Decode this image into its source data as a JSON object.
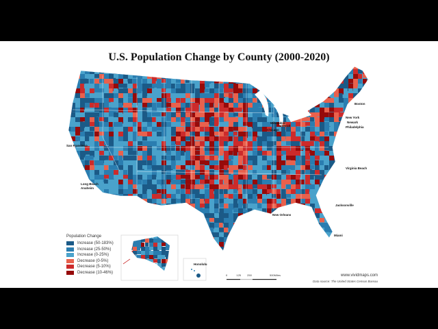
{
  "title": "U.S. Population Change by County (2000-2020)",
  "legend": {
    "title": "Population Change",
    "items": [
      {
        "label": "Increase (50-183%)",
        "color": "#1b5a87"
      },
      {
        "label": "Increase (25-50%)",
        "color": "#2a7db0"
      },
      {
        "label": "Increase (0-25%)",
        "color": "#4aa2cb"
      },
      {
        "label": "Decrease (0-5%)",
        "color": "#e9614d"
      },
      {
        "label": "Decrease (5-10%)",
        "color": "#cc2b2b"
      },
      {
        "label": "Decrease (10-46%)",
        "color": "#960a0a"
      }
    ]
  },
  "cities": [
    "San Francisco",
    "Long Beach",
    "Anaheim",
    "Milwaukee",
    "Chicago",
    "Detroit",
    "Boston",
    "New York",
    "Newark",
    "Philadelphia",
    "Virginia Beach",
    "Jacksonville",
    "New Orleans",
    "Miami"
  ],
  "insets": {
    "hawaii_label": "Honolulu"
  },
  "scale_bar": {
    "ticks": [
      "0",
      "125",
      "250",
      "500Miles"
    ]
  },
  "credit": "www.vividmaps.com",
  "source": "Data source: The United States Census Bureau"
}
